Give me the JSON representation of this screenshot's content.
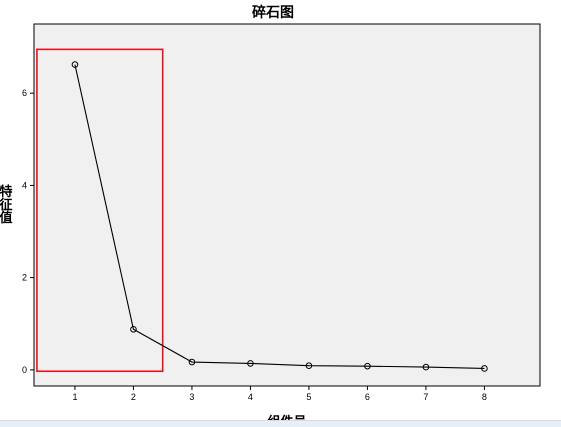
{
  "chart_data": {
    "type": "line",
    "title": "碎石图",
    "xlabel": "组件号",
    "ylabel": "特征值",
    "x": [
      1,
      2,
      3,
      4,
      5,
      6,
      7,
      8
    ],
    "y": [
      6.62,
      0.88,
      0.17,
      0.14,
      0.09,
      0.08,
      0.06,
      0.03
    ],
    "xticks": [
      1,
      2,
      3,
      4,
      5,
      6,
      7,
      8
    ],
    "yticks": [
      0,
      2,
      4,
      6
    ],
    "xlim": [
      0.3,
      8.95
    ],
    "ylim": [
      -0.35,
      7.5
    ],
    "grid": false,
    "highlight_box": {
      "x_range": [
        0.35,
        2.5
      ],
      "y_range": [
        -0.03,
        6.95
      ],
      "color": "#e8121b"
    },
    "colors": {
      "plot_background": "#f0f0f0",
      "line": "#000000"
    }
  }
}
